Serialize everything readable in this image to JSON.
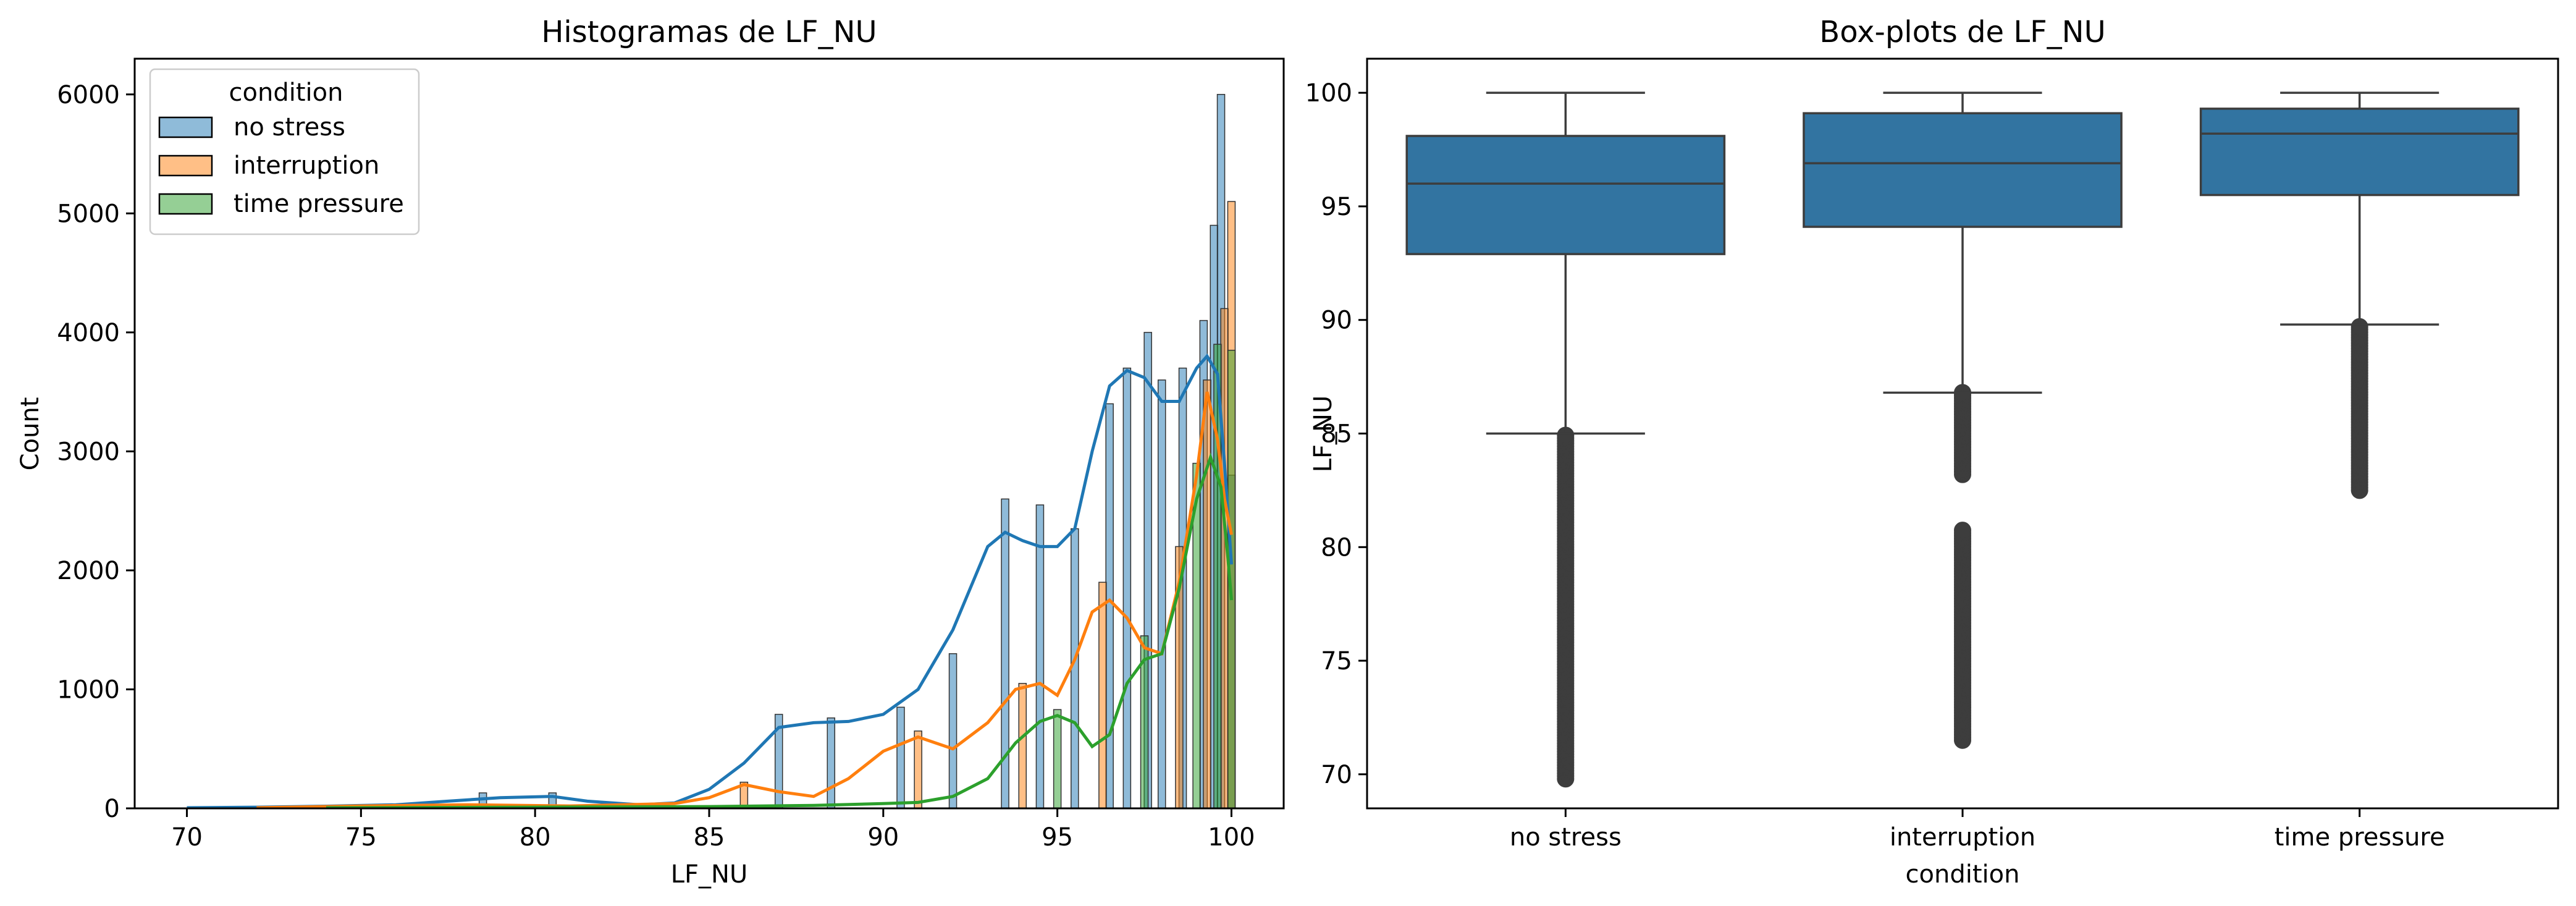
{
  "chart_data": [
    {
      "type": "histogram",
      "title": "Histogramas de LF_NU",
      "xlabel": "LF_NU",
      "ylabel": "Count",
      "xlim": [
        68.5,
        101.5
      ],
      "ylim": [
        0,
        6300
      ],
      "xticks": [
        70,
        75,
        80,
        85,
        90,
        95,
        100
      ],
      "yticks": [
        0,
        1000,
        2000,
        3000,
        4000,
        5000,
        6000
      ],
      "legend": {
        "title": "condition",
        "placement": "top-left"
      },
      "series": [
        {
          "name": "no stress",
          "color": "#1f77b4",
          "kde": [
            [
              70,
              5
            ],
            [
              72,
              10
            ],
            [
              74,
              18
            ],
            [
              76,
              30
            ],
            [
              77.5,
              60
            ],
            [
              79,
              90
            ],
            [
              80.5,
              100
            ],
            [
              81.5,
              60
            ],
            [
              83,
              30
            ],
            [
              84,
              45
            ],
            [
              85,
              160
            ],
            [
              86,
              380
            ],
            [
              87,
              680
            ],
            [
              88,
              720
            ],
            [
              89,
              730
            ],
            [
              90,
              790
            ],
            [
              91,
              1000
            ],
            [
              92,
              1500
            ],
            [
              93,
              2200
            ],
            [
              93.5,
              2320
            ],
            [
              94,
              2250
            ],
            [
              94.5,
              2200
            ],
            [
              95,
              2200
            ],
            [
              95.5,
              2350
            ],
            [
              96,
              3000
            ],
            [
              96.5,
              3550
            ],
            [
              97,
              3680
            ],
            [
              97.5,
              3620
            ],
            [
              98,
              3420
            ],
            [
              98.5,
              3420
            ],
            [
              99,
              3700
            ],
            [
              99.3,
              3800
            ],
            [
              99.6,
              3650
            ],
            [
              99.8,
              2900
            ],
            [
              100,
              2050
            ]
          ],
          "bars": [
            [
              78.5,
              130
            ],
            [
              80.5,
              130
            ],
            [
              87,
              790
            ],
            [
              88.5,
              760
            ],
            [
              90.5,
              850
            ],
            [
              92,
              1300
            ],
            [
              93.5,
              2600
            ],
            [
              94.5,
              2550
            ],
            [
              95.5,
              2350
            ],
            [
              96.5,
              3400
            ],
            [
              97,
              3700
            ],
            [
              97.6,
              4000
            ],
            [
              98,
              3600
            ],
            [
              98.6,
              3700
            ],
            [
              99.2,
              4100
            ],
            [
              99.5,
              4900
            ],
            [
              99.7,
              6000
            ],
            [
              100,
              2800
            ]
          ]
        },
        {
          "name": "interruption",
          "color": "#ff7f0e",
          "kde": [
            [
              72,
              5
            ],
            [
              75,
              20
            ],
            [
              78,
              30
            ],
            [
              81,
              20
            ],
            [
              84,
              40
            ],
            [
              85,
              90
            ],
            [
              86,
              200
            ],
            [
              87,
              140
            ],
            [
              88,
              100
            ],
            [
              89,
              250
            ],
            [
              90,
              480
            ],
            [
              91,
              600
            ],
            [
              92,
              500
            ],
            [
              93,
              720
            ],
            [
              93.8,
              1000
            ],
            [
              94.5,
              1050
            ],
            [
              95,
              950
            ],
            [
              95.5,
              1250
            ],
            [
              96,
              1650
            ],
            [
              96.5,
              1750
            ],
            [
              97,
              1600
            ],
            [
              97.5,
              1350
            ],
            [
              98,
              1300
            ],
            [
              98.5,
              1900
            ],
            [
              99,
              2800
            ],
            [
              99.3,
              3500
            ],
            [
              99.6,
              3100
            ],
            [
              99.8,
              2600
            ],
            [
              100,
              2300
            ]
          ],
          "bars": [
            [
              86,
              220
            ],
            [
              91,
              650
            ],
            [
              94,
              1050
            ],
            [
              96.3,
              1900
            ],
            [
              98.5,
              2200
            ],
            [
              99.3,
              3600
            ],
            [
              99.8,
              4200
            ],
            [
              100,
              5100
            ]
          ]
        },
        {
          "name": "time pressure",
          "color": "#2ca02c",
          "kde": [
            [
              74,
              5
            ],
            [
              80,
              10
            ],
            [
              85,
              15
            ],
            [
              88,
              25
            ],
            [
              90,
              40
            ],
            [
              91,
              50
            ],
            [
              92,
              100
            ],
            [
              93,
              250
            ],
            [
              93.8,
              550
            ],
            [
              94.5,
              730
            ],
            [
              95,
              780
            ],
            [
              95.5,
              720
            ],
            [
              96,
              520
            ],
            [
              96.5,
              620
            ],
            [
              97,
              1050
            ],
            [
              97.5,
              1250
            ],
            [
              98,
              1300
            ],
            [
              98.5,
              1850
            ],
            [
              99,
              2600
            ],
            [
              99.4,
              2950
            ],
            [
              99.7,
              2700
            ],
            [
              99.9,
              2100
            ],
            [
              100,
              1750
            ]
          ],
          "bars": [
            [
              95,
              830
            ],
            [
              97.5,
              1450
            ],
            [
              99,
              2900
            ],
            [
              99.6,
              3900
            ],
            [
              100,
              3850
            ]
          ]
        }
      ]
    },
    {
      "type": "box",
      "title": "Box-plots de LF_NU",
      "xlabel": "condition",
      "ylabel": "LF_NU",
      "ylim": [
        68.5,
        101.5
      ],
      "yticks": [
        70,
        75,
        80,
        85,
        90,
        95,
        100
      ],
      "categories": [
        "no stress",
        "interruption",
        "time pressure"
      ],
      "color": "#3274a1",
      "boxes": [
        {
          "whislo": 85.0,
          "q1": 92.9,
          "med": 96.0,
          "q3": 98.1,
          "whishi": 100.0,
          "fliers": [
            [
              69.8,
              85.0
            ]
          ]
        },
        {
          "whislo": 86.8,
          "q1": 94.1,
          "med": 96.9,
          "q3": 99.1,
          "whishi": 100.0,
          "fliers": [
            [
              83.2,
              86.8
            ],
            [
              71.5,
              80.8
            ]
          ]
        },
        {
          "whislo": 89.8,
          "q1": 95.5,
          "med": 98.2,
          "q3": 99.3,
          "whishi": 100.0,
          "fliers": [
            [
              82.5,
              89.8
            ]
          ]
        }
      ]
    }
  ]
}
